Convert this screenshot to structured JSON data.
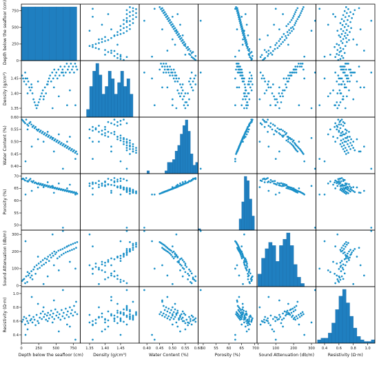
{
  "colors": {
    "marker": "#1a90c8",
    "bar_fill": "#1f7fc0",
    "bar_edge": "#1464a0",
    "frame": "#000000"
  },
  "chart_data": {
    "type": "scatter",
    "subtype": "scatter-matrix",
    "variables": [
      {
        "key": "depth",
        "label": "Depth below the seafloor (cm)",
        "range": [
          0,
          850
        ],
        "ticks": [
          "0",
          "250",
          "500",
          "750"
        ],
        "tick_values": [
          0,
          250,
          500,
          750
        ]
      },
      {
        "key": "density",
        "label": "Density (g/cm³)",
        "range": [
          1.32,
          1.51
        ],
        "ticks": [
          "1.35",
          "1.40",
          "1.45"
        ],
        "tick_values": [
          1.35,
          1.4,
          1.45
        ]
      },
      {
        "key": "water",
        "label": "Water Content (%)",
        "range": [
          0.37,
          0.6
        ],
        "ticks": [
          "0.40",
          "0.45",
          "0.50",
          "0.55",
          "0.60"
        ],
        "tick_values": [
          0.4,
          0.45,
          0.5,
          0.55,
          0.6
        ]
      },
      {
        "key": "porosity",
        "label": "Porosity (%)",
        "range": [
          48,
          71
        ],
        "ticks": [
          "50",
          "55",
          "60",
          "65",
          "70"
        ],
        "tick_values": [
          50,
          55,
          60,
          65,
          70
        ]
      },
      {
        "key": "sound",
        "label": "Sound Attenuation (db/m)",
        "range": [
          -5,
          325
        ],
        "ticks": [
          "0",
          "100",
          "200",
          "300"
        ],
        "tick_values": [
          0,
          100,
          200,
          300
        ]
      },
      {
        "key": "resistivity",
        "label": "Resistivity (Ω·m)",
        "range": [
          0.28,
          1.1
        ],
        "ticks": [
          "0.4",
          "0.6",
          "0.8",
          "1.0"
        ],
        "tick_values": [
          0.4,
          0.6,
          0.8,
          1.0
        ]
      }
    ],
    "diagonal": [
      {
        "type": "bar",
        "variable": "depth",
        "bins": [
          0,
          100,
          200,
          300,
          400,
          500,
          600,
          700,
          800
        ],
        "values": [
          10,
          10,
          10,
          10,
          10,
          10,
          10,
          10
        ]
      },
      {
        "type": "bar",
        "variable": "density",
        "bins": [
          1.34,
          1.35,
          1.36,
          1.37,
          1.38,
          1.39,
          1.4,
          1.41,
          1.42,
          1.43,
          1.44,
          1.45,
          1.46,
          1.47,
          1.48,
          1.49
        ],
        "values": [
          2,
          8,
          12,
          14,
          11,
          6,
          8,
          12,
          10,
          6,
          9,
          12,
          8,
          10,
          6
        ]
      },
      {
        "type": "bar",
        "variable": "water",
        "bins": [
          0.37,
          0.38,
          0.39,
          0.4,
          0.41,
          0.42,
          0.43,
          0.44,
          0.45,
          0.46,
          0.47,
          0.48,
          0.49,
          0.5,
          0.51,
          0.52,
          0.53,
          0.54,
          0.55,
          0.56,
          0.57,
          0.58,
          0.59,
          0.6
        ],
        "values": [
          0,
          0,
          0,
          1,
          0,
          0,
          0,
          0,
          0,
          0,
          1,
          4,
          4,
          5,
          8,
          10,
          14,
          17,
          19,
          15,
          7,
          3,
          4
        ]
      },
      {
        "type": "bar",
        "variable": "porosity",
        "bins": [
          48,
          49,
          50,
          51,
          52,
          53,
          54,
          55,
          56,
          57,
          58,
          59,
          60,
          61,
          62,
          63,
          64,
          65,
          66,
          67,
          68,
          69,
          70
        ],
        "values": [
          1,
          0,
          0,
          0,
          0,
          0,
          0,
          0,
          0,
          0,
          0,
          0,
          0,
          0,
          0,
          0,
          8,
          20,
          38,
          35,
          22,
          10
        ]
      },
      {
        "type": "bar",
        "variable": "sound",
        "bins": [
          0,
          20,
          40,
          60,
          80,
          100,
          120,
          140,
          160,
          180,
          200,
          220,
          240,
          260
        ],
        "values": [
          8,
          18,
          24,
          28,
          26,
          16,
          26,
          30,
          34,
          26,
          14,
          6,
          2
        ]
      },
      {
        "type": "bar",
        "variable": "resistivity",
        "bins": [
          0.3,
          0.35,
          0.4,
          0.45,
          0.5,
          0.55,
          0.6,
          0.65,
          0.7,
          0.75,
          0.8,
          0.85,
          0.9,
          0.95,
          1.0,
          1.05,
          1.1
        ],
        "values": [
          2,
          3,
          3,
          6,
          12,
          20,
          28,
          32,
          24,
          16,
          9,
          4,
          2,
          1,
          1,
          2
        ]
      }
    ],
    "points": [
      {
        "depth": 10,
        "density": 1.46,
        "water": 0.59,
        "porosity": 68.8,
        "sound": 28,
        "resistivity": 0.59
      },
      {
        "depth": 25,
        "density": 1.45,
        "water": 0.585,
        "porosity": 69,
        "sound": 35,
        "resistivity": 0.62
      },
      {
        "depth": 40,
        "density": 1.44,
        "water": 0.58,
        "porosity": 68.6,
        "sound": 40,
        "resistivity": 0.66
      },
      {
        "depth": 55,
        "density": 1.47,
        "water": 0.575,
        "porosity": 68.2,
        "sound": 15,
        "resistivity": 0.55
      },
      {
        "depth": 70,
        "density": 1.43,
        "water": 0.59,
        "porosity": 69.2,
        "sound": 55,
        "resistivity": 0.64
      },
      {
        "depth": 85,
        "density": 1.45,
        "water": 0.57,
        "porosity": 68,
        "sound": 22,
        "resistivity": 0.6
      },
      {
        "depth": 100,
        "density": 1.44,
        "water": 0.565,
        "porosity": 67.8,
        "sound": 60,
        "resistivity": 0.57
      },
      {
        "depth": 115,
        "density": 1.42,
        "water": 0.575,
        "porosity": 68.4,
        "sound": 72,
        "resistivity": 0.68
      },
      {
        "depth": 130,
        "density": 1.41,
        "water": 0.58,
        "porosity": 68.9,
        "sound": 48,
        "resistivity": 0.61
      },
      {
        "depth": 145,
        "density": 1.43,
        "water": 0.57,
        "porosity": 67.9,
        "sound": 85,
        "resistivity": 0.63
      },
      {
        "depth": 160,
        "density": 1.4,
        "water": 0.56,
        "porosity": 67.5,
        "sound": 38,
        "resistivity": 0.58
      },
      {
        "depth": 175,
        "density": 1.38,
        "water": 0.565,
        "porosity": 68,
        "sound": 95,
        "resistivity": 0.66
      },
      {
        "depth": 190,
        "density": 1.37,
        "water": 0.555,
        "porosity": 67.2,
        "sound": 110,
        "resistivity": 0.62
      },
      {
        "depth": 205,
        "density": 1.36,
        "water": 0.56,
        "porosity": 67.4,
        "sound": 70,
        "resistivity": 0.54
      },
      {
        "depth": 220,
        "density": 1.35,
        "water": 0.55,
        "porosity": 67,
        "sound": 120,
        "resistivity": 0.69
      },
      {
        "depth": 235,
        "density": 1.36,
        "water": 0.545,
        "porosity": 66.8,
        "sound": 98,
        "resistivity": 0.6
      },
      {
        "depth": 250,
        "density": 1.37,
        "water": 0.55,
        "porosity": 67.1,
        "sound": 130,
        "resistivity": 0.57
      },
      {
        "depth": 265,
        "density": 1.38,
        "water": 0.54,
        "porosity": 66.5,
        "sound": 105,
        "resistivity": 0.65
      },
      {
        "depth": 280,
        "density": 1.39,
        "water": 0.545,
        "porosity": 66.9,
        "sound": 140,
        "resistivity": 0.71
      },
      {
        "depth": 295,
        "density": 1.4,
        "water": 0.535,
        "porosity": 66.3,
        "sound": 118,
        "resistivity": 0.63
      },
      {
        "depth": 310,
        "density": 1.41,
        "water": 0.54,
        "porosity": 66.7,
        "sound": 150,
        "resistivity": 0.74
      },
      {
        "depth": 325,
        "density": 1.39,
        "water": 0.53,
        "porosity": 66.1,
        "sound": 125,
        "resistivity": 0.66
      },
      {
        "depth": 340,
        "density": 1.42,
        "water": 0.535,
        "porosity": 66.4,
        "sound": 160,
        "resistivity": 0.7
      },
      {
        "depth": 355,
        "density": 1.4,
        "water": 0.525,
        "porosity": 65.9,
        "sound": 135,
        "resistivity": 0.62
      },
      {
        "depth": 370,
        "density": 1.43,
        "water": 0.53,
        "porosity": 66.2,
        "sound": 155,
        "resistivity": 0.68
      },
      {
        "depth": 385,
        "density": 1.44,
        "water": 0.52,
        "porosity": 65.6,
        "sound": 170,
        "resistivity": 0.72
      },
      {
        "depth": 400,
        "density": 1.45,
        "water": 0.525,
        "porosity": 66,
        "sound": 145,
        "resistivity": 0.64
      },
      {
        "depth": 415,
        "density": 1.46,
        "water": 0.515,
        "porosity": 65.4,
        "sound": 180,
        "resistivity": 0.69
      },
      {
        "depth": 430,
        "density": 1.44,
        "water": 0.52,
        "porosity": 65.8,
        "sound": 165,
        "resistivity": 0.75
      },
      {
        "depth": 445,
        "density": 1.47,
        "water": 0.51,
        "porosity": 65.2,
        "sound": 190,
        "resistivity": 0.66
      },
      {
        "depth": 460,
        "density": 1.45,
        "water": 0.515,
        "porosity": 65.5,
        "sound": 175,
        "resistivity": 0.71
      },
      {
        "depth": 475,
        "density": 1.48,
        "water": 0.505,
        "porosity": 65,
        "sound": 200,
        "resistivity": 0.63
      },
      {
        "depth": 490,
        "density": 1.46,
        "water": 0.51,
        "porosity": 65.3,
        "sound": 185,
        "resistivity": 0.77
      },
      {
        "depth": 505,
        "density": 1.47,
        "water": 0.5,
        "porosity": 64.8,
        "sound": 195,
        "resistivity": 0.68
      },
      {
        "depth": 520,
        "density": 1.45,
        "water": 0.505,
        "porosity": 65.1,
        "sound": 160,
        "resistivity": 0.73
      },
      {
        "depth": 535,
        "density": 1.48,
        "water": 0.495,
        "porosity": 64.6,
        "sound": 205,
        "resistivity": 0.65
      },
      {
        "depth": 550,
        "density": 1.46,
        "water": 0.5,
        "porosity": 64.9,
        "sound": 170,
        "resistivity": 0.7
      },
      {
        "depth": 565,
        "density": 1.49,
        "water": 0.49,
        "porosity": 64.4,
        "sound": 210,
        "resistivity": 0.62
      },
      {
        "depth": 580,
        "density": 1.47,
        "water": 0.495,
        "porosity": 64.7,
        "sound": 180,
        "resistivity": 0.76
      },
      {
        "depth": 595,
        "density": 1.48,
        "water": 0.485,
        "porosity": 64.2,
        "sound": 215,
        "resistivity": 0.67
      },
      {
        "depth": 610,
        "density": 1.46,
        "water": 0.49,
        "porosity": 64.5,
        "sound": 188,
        "resistivity": 0.72
      },
      {
        "depth": 625,
        "density": 1.49,
        "water": 0.48,
        "porosity": 64,
        "sound": 222,
        "resistivity": 0.64
      },
      {
        "depth": 640,
        "density": 1.47,
        "water": 0.485,
        "porosity": 64.3,
        "sound": 195,
        "resistivity": 0.78
      },
      {
        "depth": 655,
        "density": 1.5,
        "water": 0.475,
        "porosity": 63.8,
        "sound": 228,
        "resistivity": 0.69
      },
      {
        "depth": 670,
        "density": 1.48,
        "water": 0.48,
        "porosity": 64.1,
        "sound": 200,
        "resistivity": 0.74
      },
      {
        "depth": 685,
        "density": 1.49,
        "water": 0.47,
        "porosity": 63.6,
        "sound": 235,
        "resistivity": 0.66
      },
      {
        "depth": 700,
        "density": 1.47,
        "water": 0.475,
        "porosity": 63.9,
        "sound": 205,
        "resistivity": 0.8
      },
      {
        "depth": 715,
        "density": 1.5,
        "water": 0.465,
        "porosity": 63.4,
        "sound": 240,
        "resistivity": 0.71
      },
      {
        "depth": 730,
        "density": 1.48,
        "water": 0.47,
        "porosity": 63.7,
        "sound": 210,
        "resistivity": 0.76
      },
      {
        "depth": 745,
        "density": 1.49,
        "water": 0.46,
        "porosity": 63.2,
        "sound": 245,
        "resistivity": 0.68
      },
      {
        "depth": 760,
        "density": 1.47,
        "water": 0.465,
        "porosity": 63.5,
        "sound": 215,
        "resistivity": 0.82
      },
      {
        "depth": 775,
        "density": 1.5,
        "water": 0.455,
        "porosity": 63,
        "sound": 250,
        "resistivity": 0.73
      },
      {
        "depth": 790,
        "density": 1.49,
        "water": 0.46,
        "porosity": 63.3,
        "sound": 222,
        "resistivity": 0.88
      },
      {
        "depth": 805,
        "density": 1.48,
        "water": 0.45,
        "porosity": 62.8,
        "sound": 255,
        "resistivity": 0.7
      },
      {
        "depth": 60,
        "density": 1.45,
        "water": 0.42,
        "porosity": 62.5,
        "sound": 260,
        "resistivity": 0.4
      },
      {
        "depth": 600,
        "density": 1.47,
        "water": 0.39,
        "porosity": 49,
        "sound": 320,
        "resistivity": 1.05
      },
      {
        "depth": 780,
        "density": 1.36,
        "water": 0.43,
        "porosity": 62.5,
        "sound": 100,
        "resistivity": 0.33
      },
      {
        "depth": 320,
        "density": 1.38,
        "water": 0.5,
        "porosity": 65.5,
        "sound": 10,
        "resistivity": 0.8
      },
      {
        "depth": 450,
        "density": 1.35,
        "water": 0.515,
        "porosity": 66,
        "sound": 300,
        "resistivity": 0.58
      },
      {
        "depth": 150,
        "density": 1.42,
        "water": 0.48,
        "porosity": 64,
        "sound": 60,
        "resistivity": 0.95
      },
      {
        "depth": 700,
        "density": 1.41,
        "water": 0.52,
        "porosity": 66.5,
        "sound": 140,
        "resistivity": 0.52
      },
      {
        "depth": 540,
        "density": 1.39,
        "water": 0.53,
        "porosity": 67,
        "sound": 90,
        "resistivity": 0.45
      },
      {
        "depth": 240,
        "density": 1.44,
        "water": 0.51,
        "porosity": 65.4,
        "sound": 170,
        "resistivity": 0.85
      },
      {
        "depth": 380,
        "density": 1.43,
        "water": 0.54,
        "porosity": 67.5,
        "sound": 55,
        "resistivity": 0.6
      },
      {
        "depth": 660,
        "density": 1.36,
        "water": 0.5,
        "porosity": 65,
        "sound": 230,
        "resistivity": 0.55
      },
      {
        "depth": 90,
        "density": 1.4,
        "water": 0.55,
        "porosity": 67.8,
        "sound": 80,
        "resistivity": 0.48
      },
      {
        "depth": 470,
        "density": 1.42,
        "water": 0.46,
        "porosity": 63.2,
        "sound": 120,
        "resistivity": 0.9
      }
    ]
  }
}
